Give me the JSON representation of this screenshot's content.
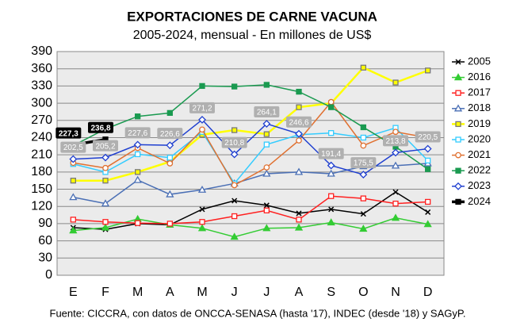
{
  "chart_data": {
    "type": "line",
    "title": "EXPORTACIONES DE CARNE VACUNA",
    "subtitle": "2005-2024, mensual - En millones de US$",
    "source": "Fuente: CICCRA, con datos de ONCCA-SENASA (hasta '17), INDEC (desde '18) y SAGyP.",
    "categories": [
      "E",
      "F",
      "M",
      "A",
      "M",
      "J",
      "J",
      "A",
      "S",
      "O",
      "N",
      "D"
    ],
    "ylim": [
      0,
      390
    ],
    "yticks": [
      0,
      30,
      60,
      90,
      120,
      150,
      180,
      210,
      240,
      270,
      300,
      330,
      360,
      390
    ],
    "grid": true,
    "legend": "right",
    "series": [
      {
        "name": "2005",
        "color": "#000000",
        "values": [
          83,
          80,
          90,
          88,
          115,
          130,
          122,
          108,
          115,
          107,
          145,
          110
        ]
      },
      {
        "name": "2016",
        "color": "#33cc33",
        "values": [
          78,
          83,
          98,
          88,
          82,
          67,
          82,
          83,
          92,
          81,
          100,
          89
        ]
      },
      {
        "name": "2017",
        "color": "#ff2020",
        "values": [
          97,
          93,
          91,
          90,
          93,
          103,
          113,
          97,
          138,
          134,
          125,
          128
        ]
      },
      {
        "name": "2018",
        "color": "#4a6fb5",
        "values": [
          136,
          125,
          166,
          141,
          149,
          160,
          177,
          180,
          177,
          190,
          191,
          195
        ]
      },
      {
        "name": "2019",
        "color": "#ffff00",
        "values": [
          165,
          165,
          180,
          198,
          245,
          253,
          246,
          293,
          300,
          362,
          336,
          357
        ]
      },
      {
        "name": "2020",
        "color": "#33ccff",
        "values": [
          194,
          180,
          211,
          205,
          250,
          160,
          228,
          245,
          248,
          240,
          257,
          200
        ]
      },
      {
        "name": "2021",
        "color": "#e07030",
        "values": [
          196,
          187,
          222,
          195,
          254,
          157,
          188,
          235,
          302,
          226,
          250,
          240
        ]
      },
      {
        "name": "2022",
        "color": "#1a9a50",
        "values": [
          226,
          255,
          277,
          283,
          330,
          329,
          332,
          320,
          293,
          258,
          224,
          185
        ]
      },
      {
        "name": "2023",
        "color": "#1f3fd0",
        "values": [
          202.5,
          205.2,
          227.6,
          226.6,
          271.2,
          210.8,
          264.1,
          246.6,
          191.4,
          175.5,
          213.8,
          220.5
        ],
        "value_labels": [
          "202,5",
          "205,2",
          "227,6",
          "226,6",
          "271,2",
          "210,8",
          "264,1",
          "246,6",
          "191,4",
          "175,5",
          "213,8",
          "220,5"
        ]
      },
      {
        "name": "2024",
        "color": "#000000",
        "values": [
          227.3,
          236.8,
          null,
          null,
          null,
          null,
          null,
          null,
          null,
          null,
          null,
          null
        ],
        "value_labels": [
          "227,3",
          "236,8",
          null,
          null,
          null,
          null,
          null,
          null,
          null,
          null,
          null,
          null
        ]
      }
    ]
  }
}
